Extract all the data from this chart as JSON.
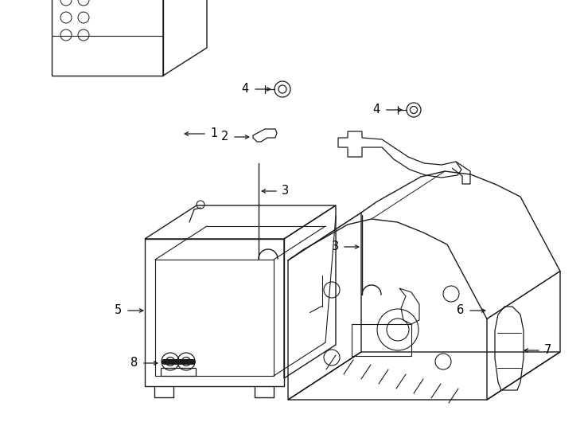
{
  "bg": "#ffffff",
  "lc": "#1a1a1a",
  "lw": 1.0,
  "figsize": [
    7.34,
    5.4
  ],
  "dpi": 100
}
